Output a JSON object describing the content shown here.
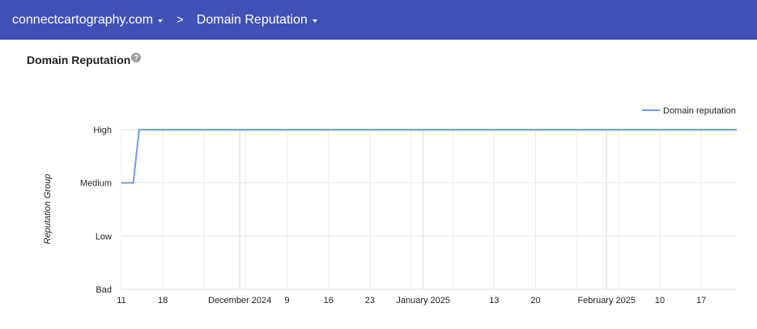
{
  "header": {
    "domain": "connectcartography.com",
    "separator": ">",
    "section": "Domain Reputation"
  },
  "page_title": "Domain Reputation",
  "help_icon": "?",
  "chart_data": {
    "type": "line",
    "title": "",
    "xlabel": "",
    "ylabel": "Reputation Group",
    "y_categories": [
      "Bad",
      "Low",
      "Medium",
      "High"
    ],
    "x_tick_labels": [
      {
        "day": 0,
        "label": "11"
      },
      {
        "day": 7,
        "label": "18"
      },
      {
        "day": 20,
        "label": "December 2024"
      },
      {
        "day": 28,
        "label": "9"
      },
      {
        "day": 35,
        "label": "16"
      },
      {
        "day": 42,
        "label": "23"
      },
      {
        "day": 51,
        "label": "January 2025"
      },
      {
        "day": 63,
        "label": "13"
      },
      {
        "day": 70,
        "label": "20"
      },
      {
        "day": 82,
        "label": "February 2025"
      },
      {
        "day": 91,
        "label": "10"
      },
      {
        "day": 98,
        "label": "17"
      }
    ],
    "x_range_days": [
      0,
      104
    ],
    "x_start": "2024-11-11",
    "week_gridlines": [
      0,
      7,
      14,
      21,
      28,
      35,
      42,
      49,
      56,
      63,
      70,
      77,
      84,
      91,
      98
    ],
    "month_gridlines": [
      20,
      51,
      82
    ],
    "series": [
      {
        "name": "Domain reputation",
        "color": "#6d9eeb",
        "points": [
          {
            "day": 0,
            "value": "Medium"
          },
          {
            "day": 2,
            "value": "Medium"
          },
          {
            "day": 3,
            "value": "High"
          },
          {
            "day": 104,
            "value": "High"
          }
        ]
      }
    ],
    "legend": "top-right",
    "grid": true
  }
}
